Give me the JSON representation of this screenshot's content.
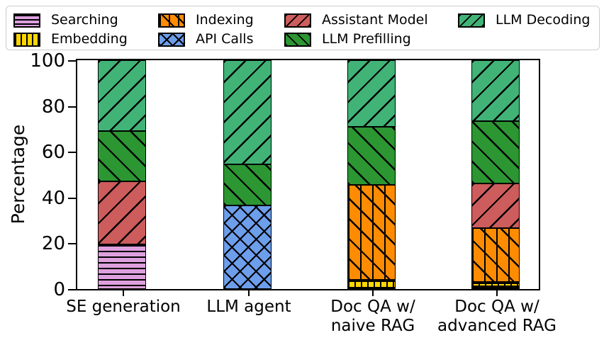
{
  "legend": {
    "border_color": "#cccccc",
    "columns": [
      [
        {
          "label": "Searching",
          "series": "Searching"
        },
        {
          "label": "Embedding",
          "series": "Embedding"
        }
      ],
      [
        {
          "label": "Indexing",
          "series": "Indexing"
        },
        {
          "label": "API Calls",
          "series": "API Calls"
        }
      ],
      [
        {
          "label": "Assistant Model",
          "series": "Assistant Model"
        },
        {
          "label": "LLM Prefilling",
          "series": "LLM Prefilling"
        }
      ],
      [
        {
          "label": "LLM Decoding",
          "series": "LLM Decoding"
        }
      ]
    ]
  },
  "chart_data": {
    "type": "bar",
    "stacked": true,
    "title": "",
    "xlabel": "",
    "ylabel": "Percentage",
    "ylim": [
      0,
      100
    ],
    "yticks": [
      0,
      20,
      40,
      60,
      80,
      100
    ],
    "grid": false,
    "legend_position": "top",
    "categories": [
      "SE generation",
      "LLM agent",
      "Doc QA w/ naive RAG",
      "Doc QA w/ advanced RAG"
    ],
    "categories_display": [
      [
        "SE generation"
      ],
      [
        "LLM agent"
      ],
      [
        "Doc QA w/",
        "naive RAG"
      ],
      [
        "Doc QA w/",
        "advanced RAG"
      ]
    ],
    "series": [
      {
        "name": "Searching",
        "color": "#dda0dd",
        "hatch": "-",
        "legend_hatch": "-",
        "values": [
          19.5,
          0,
          0,
          1.2
        ]
      },
      {
        "name": "Embedding",
        "color": "#ffd700",
        "hatch": "|-",
        "legend_hatch": "|",
        "values": [
          0,
          0,
          4,
          1.8
        ]
      },
      {
        "name": "Indexing",
        "color": "#ff8c00",
        "hatch": "|\\",
        "legend_hatch": "|\\",
        "values": [
          0,
          0,
          41.5,
          23.5
        ]
      },
      {
        "name": "API Calls",
        "color": "#6d9eeb",
        "hatch": "x",
        "legend_hatch": "x",
        "values": [
          0,
          36.5,
          0,
          0
        ]
      },
      {
        "name": "Assistant Model",
        "color": "#cd5c5c",
        "hatch": "/",
        "legend_hatch": "/",
        "values": [
          27.5,
          0,
          0,
          19.5
        ]
      },
      {
        "name": "LLM Prefilling",
        "color": "#2c9632",
        "hatch": "\\",
        "legend_hatch": "\\",
        "values": [
          22,
          18,
          25.5,
          27.5
        ]
      },
      {
        "name": "LLM Decoding",
        "color": "#42b377",
        "hatch": "/",
        "legend_hatch": "/",
        "values": [
          31,
          45.5,
          29,
          26.5
        ]
      }
    ]
  }
}
